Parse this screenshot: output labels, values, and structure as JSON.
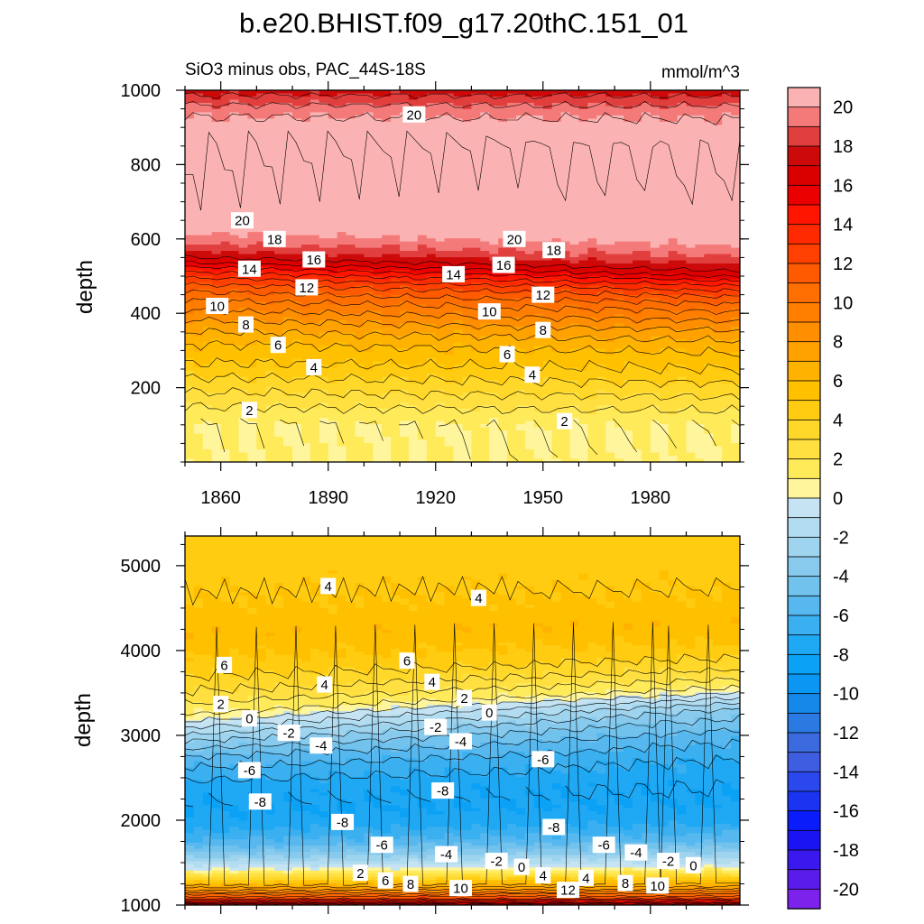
{
  "figure": {
    "title": "b.e20.BHIST.f09_g17.20thC.151_01",
    "subtitle_left": "SiO3 minus obs, PAC_44S-18S",
    "subtitle_right": "mmol/m^3"
  },
  "chart_data": [
    {
      "type": "heatmap",
      "panel": "upper",
      "title": "SiO3 minus obs, PAC_44S-18S",
      "units": "mmol/m^3",
      "xlabel": "",
      "ylabel": "depth",
      "xlim": [
        1850,
        2005
      ],
      "ylim": [
        1000,
        0
      ],
      "x_ticks": [
        1860,
        1890,
        1920,
        1950,
        1980
      ],
      "y_ticks": [
        200,
        400,
        600,
        800,
        1000
      ],
      "depth_profile": {
        "depth": [
          0,
          50,
          100,
          130,
          150,
          190,
          230,
          270,
          320,
          370,
          410,
          450,
          490,
          520,
          545,
          575,
          610,
          640,
          700,
          850,
          910,
          950,
          975,
          1000
        ],
        "value": [
          1.0,
          1.0,
          1.0,
          1.5,
          2.0,
          3.0,
          4.0,
          5.0,
          6.0,
          7.5,
          9.0,
          10.5,
          12.5,
          14.5,
          16.5,
          18.5,
          19.8,
          21.0,
          21.0,
          21.0,
          20.5,
          19.5,
          18.5,
          17.5
        ]
      },
      "trend_per_century": [
        {
          "depth": 0,
          "shift_m": 0
        },
        {
          "depth": 500,
          "shift_m": -25
        },
        {
          "depth": 1000,
          "shift_m": 0
        }
      ],
      "contour_labels": [
        {
          "text": "2",
          "x": 1868,
          "y": 140
        },
        {
          "text": "2",
          "x": 1956,
          "y": 110
        },
        {
          "text": "4",
          "x": 1886,
          "y": 255
        },
        {
          "text": "4",
          "x": 1947,
          "y": 235
        },
        {
          "text": "6",
          "x": 1876,
          "y": 315
        },
        {
          "text": "6",
          "x": 1940,
          "y": 290
        },
        {
          "text": "8",
          "x": 1867,
          "y": 370
        },
        {
          "text": "8",
          "x": 1950,
          "y": 355
        },
        {
          "text": "10",
          "x": 1859,
          "y": 420
        },
        {
          "text": "10",
          "x": 1935,
          "y": 405
        },
        {
          "text": "12",
          "x": 1884,
          "y": 470
        },
        {
          "text": "12",
          "x": 1950,
          "y": 450
        },
        {
          "text": "14",
          "x": 1868,
          "y": 520
        },
        {
          "text": "14",
          "x": 1925,
          "y": 505
        },
        {
          "text": "16",
          "x": 1886,
          "y": 545
        },
        {
          "text": "16",
          "x": 1939,
          "y": 530
        },
        {
          "text": "18",
          "x": 1875,
          "y": 600
        },
        {
          "text": "18",
          "x": 1953,
          "y": 570
        },
        {
          "text": "20",
          "x": 1866,
          "y": 650
        },
        {
          "text": "20",
          "x": 1942,
          "y": 600
        },
        {
          "text": "20",
          "x": 1914,
          "y": 935
        }
      ]
    },
    {
      "type": "heatmap",
      "panel": "lower",
      "xlabel": "",
      "ylabel": "depth",
      "xlim": [
        1850,
        2005
      ],
      "ylim": [
        5350,
        1000
      ],
      "y_ticks": [
        1000,
        2000,
        3000,
        4000,
        5000
      ],
      "depth_profile": {
        "depth": [
          1000,
          1080,
          1180,
          1300,
          1420,
          1560,
          1720,
          1900,
          2100,
          2300,
          2520,
          2700,
          2850,
          2980,
          3100,
          3250,
          3450,
          3650,
          3900,
          4200,
          4600,
          5000,
          5350
        ],
        "value": [
          18,
          12,
          8,
          4,
          0,
          -3,
          -5.5,
          -7.2,
          -8.0,
          -7.8,
          -6.8,
          -5.5,
          -4.0,
          -2.5,
          -1.0,
          1.0,
          2.5,
          3.8,
          5.0,
          5.8,
          5.0,
          4.5,
          4.5
        ]
      },
      "trend_per_century": [
        {
          "depth": 1000,
          "shift_m": 0
        },
        {
          "depth": 2200,
          "shift_m": 60
        },
        {
          "depth": 3300,
          "shift_m": 250
        },
        {
          "depth": 4300,
          "shift_m": 80
        },
        {
          "depth": 5350,
          "shift_m": 0
        }
      ],
      "contour_labels": [
        {
          "text": "2",
          "x": 1899,
          "y": 1380
        },
        {
          "text": "6",
          "x": 1906,
          "y": 1290
        },
        {
          "text": "8",
          "x": 1913,
          "y": 1250
        },
        {
          "text": "10",
          "x": 1927,
          "y": 1200
        },
        {
          "text": "12",
          "x": 1957,
          "y": 1180
        },
        {
          "text": "4",
          "x": 1962,
          "y": 1320
        },
        {
          "text": "8",
          "x": 1973,
          "y": 1260
        },
        {
          "text": "10",
          "x": 1982,
          "y": 1230
        },
        {
          "text": "4",
          "x": 1950,
          "y": 1350
        },
        {
          "text": "0",
          "x": 1944,
          "y": 1450
        },
        {
          "text": "-2",
          "x": 1937,
          "y": 1520
        },
        {
          "text": "-4",
          "x": 1923,
          "y": 1600
        },
        {
          "text": "-6",
          "x": 1905,
          "y": 1710
        },
        {
          "text": "-2",
          "x": 1985,
          "y": 1520
        },
        {
          "text": "0",
          "x": 1992,
          "y": 1470
        },
        {
          "text": "-4",
          "x": 1976,
          "y": 1620
        },
        {
          "text": "-6",
          "x": 1967,
          "y": 1710
        },
        {
          "text": "-8",
          "x": 1894,
          "y": 1980
        },
        {
          "text": "-8",
          "x": 1953,
          "y": 1920
        },
        {
          "text": "-8",
          "x": 1871,
          "y": 2220
        },
        {
          "text": "-8",
          "x": 1922,
          "y": 2350
        },
        {
          "text": "-6",
          "x": 1868,
          "y": 2590
        },
        {
          "text": "-6",
          "x": 1950,
          "y": 2720
        },
        {
          "text": "-4",
          "x": 1888,
          "y": 2880
        },
        {
          "text": "-4",
          "x": 1927,
          "y": 2930
        },
        {
          "text": "-2",
          "x": 1879,
          "y": 3030
        },
        {
          "text": "-2",
          "x": 1920,
          "y": 3100
        },
        {
          "text": "0",
          "x": 1868,
          "y": 3200
        },
        {
          "text": "0",
          "x": 1935,
          "y": 3270
        },
        {
          "text": "2",
          "x": 1860,
          "y": 3370
        },
        {
          "text": "2",
          "x": 1928,
          "y": 3440
        },
        {
          "text": "4",
          "x": 1889,
          "y": 3600
        },
        {
          "text": "4",
          "x": 1919,
          "y": 3630
        },
        {
          "text": "6",
          "x": 1861,
          "y": 3830
        },
        {
          "text": "6",
          "x": 1912,
          "y": 3880
        },
        {
          "text": "4",
          "x": 1890,
          "y": 4760
        },
        {
          "text": "4",
          "x": 1932,
          "y": 4620
        }
      ]
    }
  ],
  "colorbar": {
    "labels": [
      "20",
      "18",
      "16",
      "14",
      "12",
      "10",
      "8",
      "6",
      "4",
      "2",
      "0",
      "-2",
      "-4",
      "-6",
      "-8",
      "-10",
      "-12",
      "-14",
      "-16",
      "-18",
      "-20"
    ],
    "levels_top_to_bottom": [
      21,
      20,
      19,
      18,
      17,
      16,
      15,
      14,
      13,
      12,
      11,
      10,
      9,
      8,
      7,
      6,
      5,
      4,
      3,
      2,
      1,
      0,
      -1,
      -2,
      -3,
      -4,
      -5,
      -6,
      -7,
      -8,
      -9,
      -10,
      -11,
      -12,
      -13,
      -14,
      -15,
      -16,
      -17,
      -18,
      -19,
      -20,
      -21
    ],
    "colors_top_to_bottom": [
      "#fbb2b2",
      "#f47a7a",
      "#e13e3e",
      "#cc0a0a",
      "#da0000",
      "#ea0000",
      "#ff1500",
      "#ff2a00",
      "#ff4000",
      "#ff5a00",
      "#ff6e00",
      "#ff7e00",
      "#ff8e00",
      "#ffa200",
      "#ffb200",
      "#ffc000",
      "#ffcc11",
      "#ffd82a",
      "#ffe040",
      "#ffea5a",
      "#fff59c",
      "#c5e3f3",
      "#b2dcf0",
      "#9fd4ef",
      "#87caee",
      "#72c2ee",
      "#57b8ef",
      "#3ab0f1",
      "#1fa8f4",
      "#0ba2f6",
      "#0a96f2",
      "#1588ea",
      "#2a7ae2",
      "#3a6ade",
      "#3f5de0",
      "#2a48ec",
      "#1a34f2",
      "#0a1cfa",
      "#1a14f2",
      "#3a18ee",
      "#5a1cea",
      "#7c22ea"
    ]
  }
}
